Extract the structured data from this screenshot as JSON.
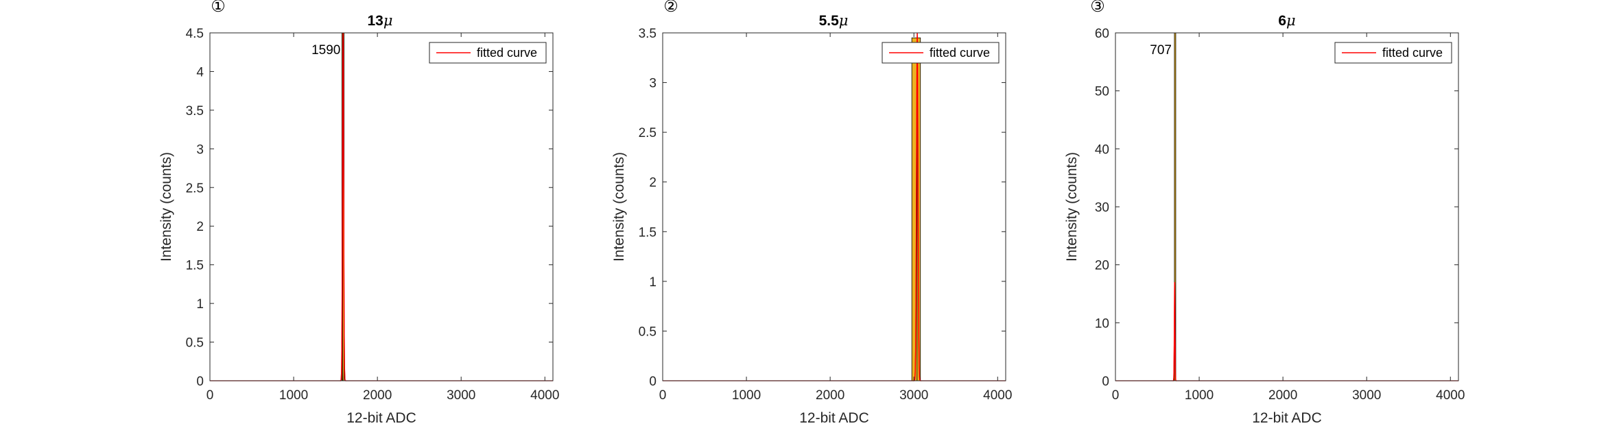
{
  "chart_data": [
    {
      "type": "bar",
      "panel_label": "①",
      "title": "13",
      "title_symbol": "μ",
      "xlabel": "12-bit ADC",
      "ylabel": "Intensity (counts)",
      "xlim": [
        0,
        4096
      ],
      "ylim": [
        0,
        4.5
      ],
      "xticks": [
        0,
        1000,
        2000,
        3000,
        4000
      ],
      "xtick_labels": [
        "0",
        "1000",
        "2000",
        "3000",
        "4000"
      ],
      "yticks": [
        0,
        0.5,
        1,
        1.5,
        2,
        2.5,
        3,
        3.5,
        4,
        4.5
      ],
      "ytick_labels": [
        "0",
        "0.5",
        "1",
        "1.5",
        "2",
        "2.5",
        "3",
        "3.5",
        "4",
        "4.5"
      ],
      "bars": [
        {
          "x": 1580,
          "width": 8,
          "value": 4.5
        },
        {
          "x": 1590,
          "width": 8,
          "value": 4.5
        }
      ],
      "fit_peak": {
        "x": 1590,
        "height": 4.5,
        "sigma": 7
      },
      "peak_label": "1590",
      "legend": {
        "entries": [
          "fitted curve"
        ],
        "placement": "top-right"
      },
      "grid": false
    },
    {
      "type": "bar",
      "panel_label": "②",
      "title": "5.5",
      "title_symbol": "μ",
      "xlabel": "12-bit ADC",
      "ylabel": "Intensity (counts)",
      "xlim": [
        0,
        4096
      ],
      "ylim": [
        0,
        3.5
      ],
      "xticks": [
        0,
        1000,
        2000,
        3000,
        4000
      ],
      "xtick_labels": [
        "0",
        "1000",
        "2000",
        "3000",
        "4000"
      ],
      "yticks": [
        0,
        0.5,
        1,
        1.5,
        2,
        2.5,
        3,
        3.5
      ],
      "ytick_labels": [
        "0",
        "0.5",
        "1",
        "1.5",
        "2",
        "2.5",
        "3",
        "3.5"
      ],
      "bars": [
        {
          "x": 3010,
          "width": 70,
          "value": 3.45
        },
        {
          "x": 3058,
          "width": 40,
          "value": 3.45
        }
      ],
      "fit_peak": {
        "x": 3040,
        "height": 3.5,
        "sigma": 9
      },
      "peak_label": "",
      "legend": {
        "entries": [
          "fitted curve"
        ],
        "placement": "top-right"
      },
      "grid": false
    },
    {
      "type": "bar",
      "panel_label": "③",
      "title": "6",
      "title_symbol": "μ",
      "xlabel": "12-bit ADC",
      "ylabel": "Intensity (counts)",
      "xlim": [
        0,
        4096
      ],
      "ylim": [
        0,
        60
      ],
      "xticks": [
        0,
        1000,
        2000,
        3000,
        4000
      ],
      "xtick_labels": [
        "0",
        "1000",
        "2000",
        "3000",
        "4000"
      ],
      "yticks": [
        0,
        10,
        20,
        30,
        40,
        50,
        60
      ],
      "ytick_labels": [
        "0",
        "10",
        "20",
        "30",
        "40",
        "50",
        "60"
      ],
      "bars": [
        {
          "x": 707,
          "width": 6,
          "value": 60
        }
      ],
      "fit_peak": {
        "x": 707,
        "height": 17,
        "sigma": 4
      },
      "peak_label": "707",
      "legend": {
        "entries": [
          "fitted curve"
        ],
        "placement": "top-right"
      },
      "grid": false
    }
  ],
  "colors": {
    "bar_fill": "#EDB120",
    "bar_edge": "#000000",
    "fit_line": "#FF0000",
    "axis": "#262626"
  }
}
